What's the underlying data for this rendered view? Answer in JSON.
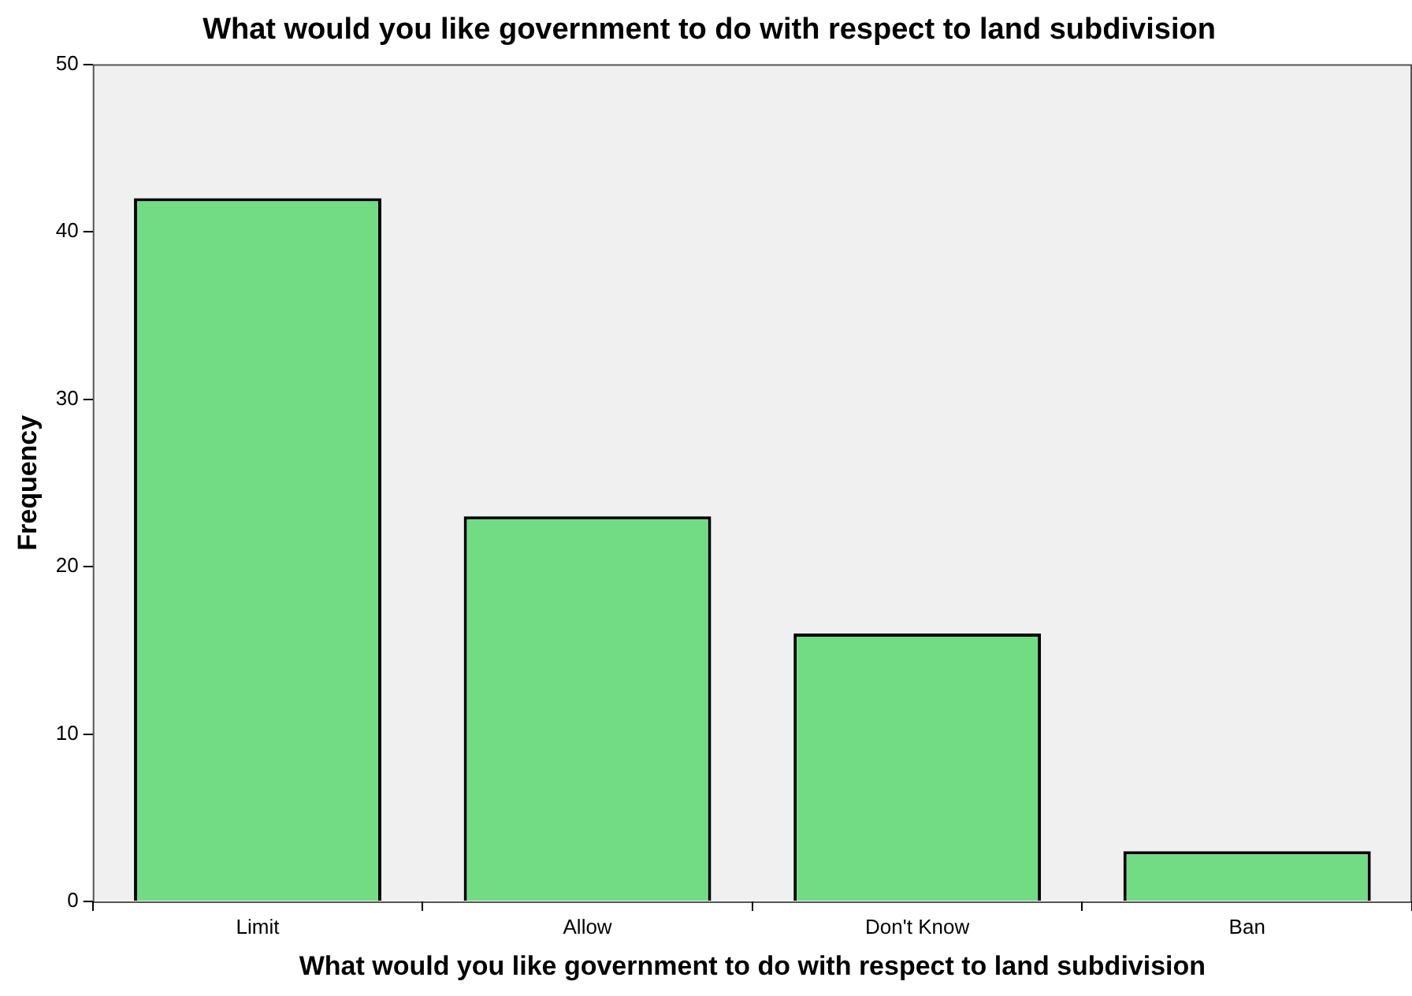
{
  "chart_data": {
    "type": "bar",
    "title": "What would you like government to do with respect to land subdivision",
    "xlabel": "What would you like government to do with respect to land subdivision",
    "ylabel": "Frequency",
    "categories": [
      "Limit",
      "Allow",
      "Don't Know",
      "Ban"
    ],
    "values": [
      42,
      23,
      16,
      3
    ],
    "color": "#72dc85",
    "ylim": [
      0,
      50
    ],
    "yticks": [
      0,
      10,
      20,
      30,
      40,
      50
    ],
    "grid": false,
    "legend": false
  }
}
